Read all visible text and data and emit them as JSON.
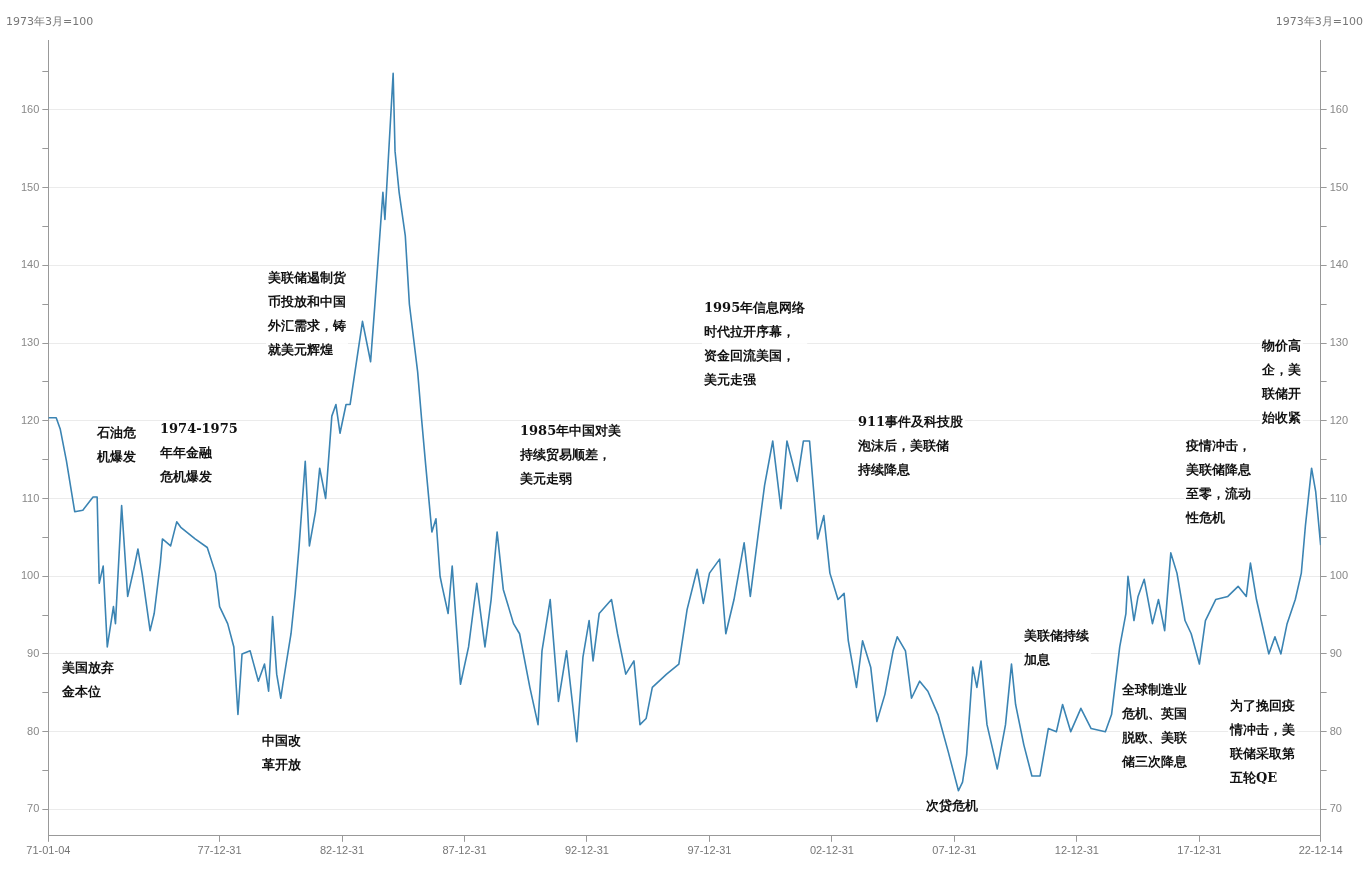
{
  "chart_data": {
    "type": "line",
    "ylabel": "1973年3月=100",
    "y2label": "1973年3月=100",
    "xlim": [
      "1971-01-04",
      "2022-12-14"
    ],
    "xticks": [
      {
        "value": "1971-01-04",
        "label": "71-01-04"
      },
      {
        "value": "1977-12-31",
        "label": "77-12-31"
      },
      {
        "value": "1982-12-31",
        "label": "82-12-31"
      },
      {
        "value": "1987-12-31",
        "label": "87-12-31"
      },
      {
        "value": "1992-12-31",
        "label": "92-12-31"
      },
      {
        "value": "1997-12-31",
        "label": "97-12-31"
      },
      {
        "value": "2002-12-31",
        "label": "02-12-31"
      },
      {
        "value": "2007-12-31",
        "label": "07-12-31"
      },
      {
        "value": "2012-12-31",
        "label": "12-12-31"
      },
      {
        "value": "2017-12-31",
        "label": "17-12-31"
      },
      {
        "value": "2022-12-14",
        "label": "22-12-14"
      }
    ],
    "ylim": [
      66.6,
      169
    ],
    "yticks": [
      70,
      {
        "value": 75,
        "label": null
      },
      80,
      {
        "value": 85,
        "label": null
      },
      90,
      {
        "value": 95,
        "label": null
      },
      100,
      {
        "value": 105,
        "label": null
      },
      110,
      {
        "value": 115,
        "label": null
      },
      120,
      {
        "value": 125,
        "label": null
      },
      130,
      {
        "value": 135,
        "label": null
      },
      140,
      {
        "value": 145,
        "label": null
      },
      150,
      {
        "value": 155,
        "label": null
      },
      160,
      {
        "value": 165,
        "label": null
      }
    ],
    "y2lim": [
      66.6,
      169
    ],
    "y2ticks": [
      70,
      {
        "value": 75,
        "label": null
      },
      80,
      {
        "value": 85,
        "label": null
      },
      90,
      {
        "value": 95,
        "label": null
      },
      100,
      {
        "value": 105,
        "label": null
      },
      110,
      {
        "value": 115,
        "label": null
      },
      120,
      {
        "value": 125,
        "label": null
      },
      130,
      {
        "value": 135,
        "label": null
      },
      140,
      {
        "value": 145,
        "label": null
      },
      150,
      {
        "value": 155,
        "label": null
      },
      160,
      {
        "value": 165,
        "label": null
      }
    ],
    "grid": "y",
    "marker": "none",
    "line_style": "solid",
    "x": [
      "1971-01-04",
      "1971-05",
      "1971-07",
      "1971-10",
      "1972-02",
      "1972-06",
      "1972-11",
      "1973-01",
      "1973-02",
      "1973-04",
      "1973-06",
      "1973-09",
      "1973-10",
      "1974-01",
      "1974-04",
      "1974-07",
      "1974-09",
      "1974-11",
      "1975-03",
      "1975-05",
      "1975-08",
      "1975-09",
      "1976-01",
      "1976-04",
      "1976-06",
      "1977-01",
      "1977-07",
      "1977-11",
      "1978-01",
      "1978-05",
      "1978-08",
      "1978-10",
      "1978-12",
      "1979-04",
      "1979-08",
      "1979-11",
      "1980-01",
      "1980-03",
      "1980-05",
      "1980-07",
      "1980-08",
      "1980-12",
      "1981-02",
      "1981-04",
      "1981-07",
      "1981-09",
      "1981-12",
      "1982-02",
      "1982-05",
      "1982-07",
      "1982-08",
      "1982-10",
      "1982-12",
      "1983-03",
      "1983-05",
      "1983-11",
      "1984-03",
      "1984-05",
      "1984-09",
      "1984-10",
      "1985-02",
      "1985-03",
      "1985-05",
      "1985-08",
      "1985-10",
      "1986-02",
      "1986-04",
      "1986-06",
      "1986-09",
      "1986-11",
      "1987-01",
      "1987-02",
      "1987-05",
      "1987-07",
      "1987-11",
      "1988-03",
      "1988-07",
      "1988-11",
      "1989-02",
      "1989-05",
      "1989-08",
      "1990-01",
      "1990-04",
      "1990-09",
      "1991-01",
      "1991-03",
      "1991-07",
      "1991-11",
      "1992-03",
      "1992-08",
      "1992-11",
      "1993-02",
      "1993-04",
      "1993-07",
      "1994-01",
      "1994-04",
      "1994-08",
      "1994-12",
      "1995-03",
      "1995-06",
      "1995-09",
      "1996-04",
      "1996-10",
      "1997-02",
      "1997-07",
      "1997-10",
      "1998-01",
      "1998-06",
      "1998-09",
      "1999-01",
      "1999-06",
      "1999-09",
      "2000-01",
      "2000-04",
      "2000-08",
      "2000-12",
      "2001-03",
      "2001-08",
      "2001-11",
      "2002-02",
      "2002-06",
      "2002-09",
      "2002-12",
      "2003-04",
      "2003-07",
      "2003-09",
      "2004-01",
      "2004-04",
      "2004-08",
      "2004-11",
      "2005-03",
      "2005-07",
      "2005-09",
      "2006-01",
      "2006-04",
      "2006-08",
      "2006-12",
      "2007-05",
      "2007-10",
      "2008-03",
      "2008-05",
      "2008-07",
      "2008-10",
      "2008-12",
      "2009-02",
      "2009-05",
      "2009-10",
      "2010-02",
      "2010-05",
      "2010-07",
      "2010-11",
      "2011-03",
      "2011-07",
      "2011-11",
      "2012-03",
      "2012-06",
      "2012-10",
      "2013-03",
      "2013-08",
      "2014-03",
      "2014-06",
      "2014-10",
      "2015-01",
      "2015-02",
      "2015-05",
      "2015-07",
      "2015-10",
      "2016-02",
      "2016-05",
      "2016-08",
      "2016-11",
      "2017-02",
      "2017-06",
      "2017-09",
      "2018-01",
      "2018-04",
      "2018-09",
      "2019-03",
      "2019-08",
      "2019-12",
      "2020-02",
      "2020-05",
      "2020-08",
      "2020-11",
      "2021-02",
      "2021-05",
      "2021-08",
      "2021-12",
      "2022-03",
      "2022-05",
      "2022-08",
      "2022-10",
      "2022-12-14"
    ],
    "series": [
      {
        "color": "#3b84b3",
        "values": [
          120.4,
          120.4,
          118.9,
          114.8,
          108.3,
          108.5,
          110.2,
          110.2,
          99.1,
          101.3,
          90.9,
          96.1,
          93.9,
          109.1,
          97.4,
          100.9,
          103.5,
          100.4,
          93.0,
          95.2,
          101.7,
          104.8,
          103.9,
          107.0,
          106.3,
          104.8,
          103.7,
          100.4,
          96.1,
          93.9,
          90.9,
          82.2,
          90.0,
          90.4,
          86.5,
          88.7,
          85.2,
          94.8,
          87.4,
          84.3,
          86.1,
          92.6,
          97.8,
          103.9,
          114.8,
          103.9,
          108.3,
          113.9,
          110.0,
          117.0,
          120.6,
          122.1,
          118.4,
          122.1,
          122.1,
          132.8,
          127.6,
          134.6,
          149.4,
          145.9,
          164.7,
          154.7,
          149.4,
          143.8,
          135.0,
          126.3,
          120.2,
          114.3,
          105.7,
          107.4,
          100.0,
          98.7,
          95.2,
          101.3,
          86.1,
          90.9,
          99.1,
          90.9,
          97.0,
          105.7,
          98.3,
          93.9,
          92.6,
          85.7,
          80.9,
          90.4,
          97.0,
          83.9,
          90.4,
          78.7,
          89.6,
          94.3,
          89.1,
          95.2,
          97.0,
          92.6,
          87.4,
          89.1,
          80.9,
          81.7,
          85.7,
          87.4,
          88.7,
          95.7,
          100.9,
          96.5,
          100.4,
          102.2,
          92.6,
          97.0,
          104.3,
          97.4,
          105.7,
          111.7,
          117.4,
          108.7,
          117.4,
          112.2,
          117.4,
          117.4,
          104.8,
          107.8,
          100.4,
          97.0,
          97.8,
          91.7,
          85.7,
          91.7,
          88.3,
          81.3,
          84.8,
          90.4,
          92.2,
          90.4,
          84.3,
          86.5,
          85.2,
          82.2,
          77.4,
          72.4,
          73.5,
          77.0,
          88.3,
          85.7,
          89.1,
          80.9,
          75.2,
          80.9,
          88.7,
          83.5,
          78.3,
          74.3,
          74.3,
          80.4,
          80.0,
          83.5,
          80.0,
          83.0,
          80.4,
          80.0,
          82.2,
          90.9,
          95.2,
          100.0,
          94.3,
          97.4,
          99.6,
          93.9,
          97.0,
          93.0,
          103.0,
          100.4,
          94.3,
          92.6,
          88.7,
          94.3,
          97.0,
          97.4,
          98.7,
          97.4,
          101.7,
          97.0,
          93.5,
          90.0,
          92.2,
          90.0,
          93.9,
          97.0,
          100.4,
          106.5,
          113.9,
          110.9,
          104.0
        ]
      }
    ],
    "annotations": [
      "石油危机爆发",
      "1974-1975年年金融危机爆发",
      "美国放弃金本位",
      "美联储遏制货币投放和中国外汇需求，铸就美元辉煌",
      "中国改革开放",
      "1985年中国对美持续贸易顺差，美元走弱",
      "1995年信息网络时代拉开序幕，资金回流美国，美元走强",
      "911事件及科技股泡沫后，美联储持续降息",
      "次贷危机",
      "美联储持续加息",
      "全球制造业危机、英国脱欧、美联储三次降息",
      "疫情冲击，美联储降息至零，流动性危机",
      "物价高企，美联储开始收紧",
      "为了挽回疫情冲击，美联储采取第五轮QE"
    ]
  }
}
